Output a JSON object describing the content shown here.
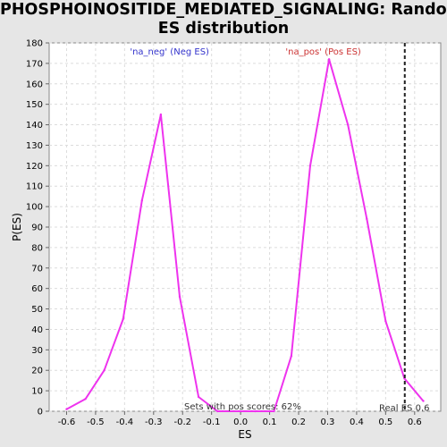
{
  "chart_data": {
    "type": "line",
    "title_lines": [
      "PHOSPHOINOSITIDE_MEDIATED_SIGNALING: Random",
      "ES distribution"
    ],
    "xlabel": "ES",
    "ylabel": "P(ES)",
    "xlim": [
      -0.66,
      0.69
    ],
    "ylim": [
      0,
      180
    ],
    "x_ticks": [
      -0.6,
      -0.5,
      -0.4,
      -0.3,
      -0.2,
      -0.1,
      0.0,
      0.1,
      0.2,
      0.3,
      0.4,
      0.5,
      0.6
    ],
    "x_tick_labels": [
      "-0.6",
      "-0.5",
      "-0.4",
      "-0.3",
      "-0.2",
      "-0.1",
      "0.0",
      "0.1",
      "0.2",
      "0.3",
      "0.4",
      "0.5",
      "0.6"
    ],
    "y_ticks": [
      0,
      10,
      20,
      30,
      40,
      50,
      60,
      70,
      80,
      90,
      100,
      110,
      120,
      130,
      140,
      150,
      160,
      170,
      180
    ],
    "grid": true,
    "line_color": "#ee33ee",
    "series": [
      {
        "x": [
          -0.6,
          -0.535,
          -0.47,
          -0.405,
          -0.34,
          -0.275,
          -0.21,
          -0.145,
          -0.08,
          0.05,
          0.115,
          0.175,
          0.24,
          0.305,
          0.37,
          0.435,
          0.5,
          0.565,
          0.63
        ],
        "y": [
          1,
          6,
          20,
          45,
          103,
          145,
          56,
          7,
          0,
          0,
          0,
          27,
          120,
          172,
          140,
          94,
          44,
          16,
          5
        ]
      }
    ],
    "real_es": 0.566,
    "legend": {
      "neg": {
        "text": "'na_neg' (Neg ES)",
        "color": "#3333cc",
        "x": -0.245
      },
      "pos": {
        "text": "'na_pos' (Pos ES)",
        "color": "#cc3333",
        "x": 0.285
      }
    },
    "annotations": {
      "pos_scores": "Sets with pos scores: 62%",
      "real_es_label": "Real ES 0.6"
    }
  }
}
